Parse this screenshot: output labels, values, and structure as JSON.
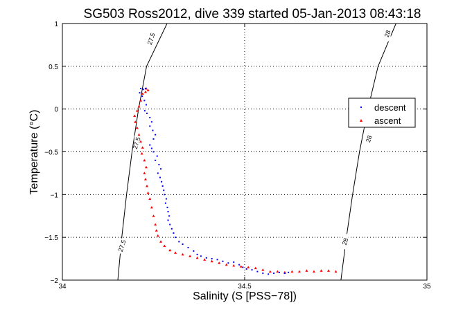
{
  "chart_data": {
    "type": "scatter",
    "title": "SG503 Ross2012, dive 339 started 05-Jan-2013 08:43:18",
    "xlabel": "Salinity (S [PSS−78])",
    "ylabel": "Temperature (°C)",
    "xlim": [
      34,
      35
    ],
    "ylim": [
      -2,
      1
    ],
    "xticks": [
      34,
      34.5,
      35
    ],
    "xtick_labels": [
      "34",
      "34.5",
      "35"
    ],
    "yticks": [
      -2,
      -1.5,
      -1,
      -0.5,
      0,
      0.5,
      1
    ],
    "ytick_labels": [
      "−2",
      "−1.5",
      "−1",
      "−0.5",
      "0",
      "0.5",
      "1"
    ],
    "grid": true,
    "legend_position": "upper-right",
    "colors": {
      "descent": "#0000ff",
      "ascent": "#ff0000",
      "contour": "#000000"
    },
    "contours": [
      {
        "label": "27.5",
        "points": [
          [
            34.152,
            -2.0
          ],
          [
            34.163,
            -1.5
          ],
          [
            34.176,
            -1.0
          ],
          [
            34.191,
            -0.5
          ],
          [
            34.209,
            0.0
          ],
          [
            34.231,
            0.5
          ],
          [
            34.287,
            1.0
          ]
        ],
        "label_positions": [
          [
            34.245,
            0.82
          ],
          [
            34.205,
            -0.4
          ],
          [
            34.165,
            -1.6
          ]
        ]
      },
      {
        "label": "28",
        "points": [
          [
            34.764,
            -2.0
          ],
          [
            34.779,
            -1.5
          ],
          [
            34.796,
            -1.0
          ],
          [
            34.815,
            -0.5
          ],
          [
            34.838,
            0.0
          ],
          [
            34.866,
            0.5
          ],
          [
            34.915,
            1.0
          ]
        ],
        "label_positions": [
          [
            34.893,
            0.88
          ],
          [
            34.842,
            -0.35
          ],
          [
            34.777,
            -1.55
          ]
        ]
      }
    ],
    "series": [
      {
        "name": "descent",
        "marker": "dot",
        "points": [
          [
            34.215,
            0.24
          ],
          [
            34.222,
            0.23
          ],
          [
            34.228,
            0.24
          ],
          [
            34.212,
            0.19
          ],
          [
            34.219,
            0.15
          ],
          [
            34.225,
            0.1
          ],
          [
            34.23,
            0.05
          ],
          [
            34.226,
            -0.02
          ],
          [
            34.232,
            -0.05
          ],
          [
            34.24,
            -0.1
          ],
          [
            34.245,
            -0.15
          ],
          [
            34.24,
            -0.2
          ],
          [
            34.248,
            -0.25
          ],
          [
            34.255,
            -0.3
          ],
          [
            34.25,
            -0.35
          ],
          [
            34.24,
            -0.42
          ],
          [
            34.245,
            -0.46
          ],
          [
            34.25,
            -0.5
          ],
          [
            34.26,
            -0.55
          ],
          [
            34.255,
            -0.6
          ],
          [
            34.265,
            -0.65
          ],
          [
            34.27,
            -0.7
          ],
          [
            34.262,
            -0.75
          ],
          [
            34.268,
            -0.8
          ],
          [
            34.272,
            -0.85
          ],
          [
            34.275,
            -0.9
          ],
          [
            34.278,
            -0.95
          ],
          [
            34.28,
            -1.0
          ],
          [
            34.285,
            -1.05
          ],
          [
            34.283,
            -1.1
          ],
          [
            34.288,
            -1.15
          ],
          [
            34.29,
            -1.2
          ],
          [
            34.293,
            -1.25
          ],
          [
            34.29,
            -1.3
          ],
          [
            34.295,
            -1.35
          ],
          [
            34.3,
            -1.4
          ],
          [
            34.305,
            -1.45
          ],
          [
            34.31,
            -1.5
          ],
          [
            34.32,
            -1.55
          ],
          [
            34.33,
            -1.58
          ],
          [
            34.345,
            -1.62
          ],
          [
            34.36,
            -1.66
          ],
          [
            34.37,
            -1.7
          ],
          [
            34.38,
            -1.72
          ],
          [
            34.395,
            -1.74
          ],
          [
            34.41,
            -1.75
          ],
          [
            34.425,
            -1.76
          ],
          [
            34.44,
            -1.78
          ],
          [
            34.455,
            -1.8
          ],
          [
            34.47,
            -1.79
          ],
          [
            34.485,
            -1.82
          ],
          [
            34.495,
            -1.85
          ],
          [
            34.505,
            -1.87
          ],
          [
            34.52,
            -1.88
          ],
          [
            34.535,
            -1.9
          ],
          [
            34.55,
            -1.92
          ],
          [
            34.565,
            -1.93
          ],
          [
            34.58,
            -1.92
          ],
          [
            34.595,
            -1.91
          ],
          [
            34.61,
            -1.92
          ],
          [
            34.62,
            -1.91
          ]
        ]
      },
      {
        "name": "ascent",
        "marker": "triangle",
        "points": [
          [
            34.23,
            0.24
          ],
          [
            34.235,
            0.22
          ],
          [
            34.228,
            0.2
          ],
          [
            34.22,
            0.18
          ],
          [
            34.215,
            0.1
          ],
          [
            34.21,
            0.03
          ],
          [
            34.205,
            -0.02
          ],
          [
            34.198,
            -0.08
          ],
          [
            34.2,
            -0.15
          ],
          [
            34.205,
            -0.22
          ],
          [
            34.21,
            -0.3
          ],
          [
            34.215,
            -0.38
          ],
          [
            34.22,
            -0.45
          ],
          [
            34.218,
            -0.52
          ],
          [
            34.225,
            -0.6
          ],
          [
            34.23,
            -0.68
          ],
          [
            34.225,
            -0.75
          ],
          [
            34.228,
            -0.82
          ],
          [
            34.232,
            -0.9
          ],
          [
            34.235,
            -0.98
          ],
          [
            34.24,
            -1.05
          ],
          [
            34.245,
            -1.15
          ],
          [
            34.25,
            -1.25
          ],
          [
            34.255,
            -1.35
          ],
          [
            34.258,
            -1.42
          ],
          [
            34.262,
            -1.48
          ],
          [
            34.27,
            -1.55
          ],
          [
            34.28,
            -1.6
          ],
          [
            34.295,
            -1.65
          ],
          [
            34.31,
            -1.68
          ],
          [
            34.33,
            -1.7
          ],
          [
            34.35,
            -1.72
          ],
          [
            34.37,
            -1.74
          ],
          [
            34.39,
            -1.76
          ],
          [
            34.41,
            -1.78
          ],
          [
            34.43,
            -1.8
          ],
          [
            34.45,
            -1.82
          ],
          [
            34.47,
            -1.83
          ],
          [
            34.49,
            -1.84
          ],
          [
            34.51,
            -1.85
          ],
          [
            34.53,
            -1.86
          ],
          [
            34.55,
            -1.88
          ],
          [
            34.57,
            -1.9
          ],
          [
            34.59,
            -1.9
          ],
          [
            34.61,
            -1.91
          ],
          [
            34.63,
            -1.9
          ],
          [
            34.65,
            -1.9
          ],
          [
            34.67,
            -1.89
          ],
          [
            34.69,
            -1.9
          ],
          [
            34.71,
            -1.89
          ],
          [
            34.73,
            -1.89
          ],
          [
            34.75,
            -1.9
          ]
        ]
      }
    ]
  }
}
